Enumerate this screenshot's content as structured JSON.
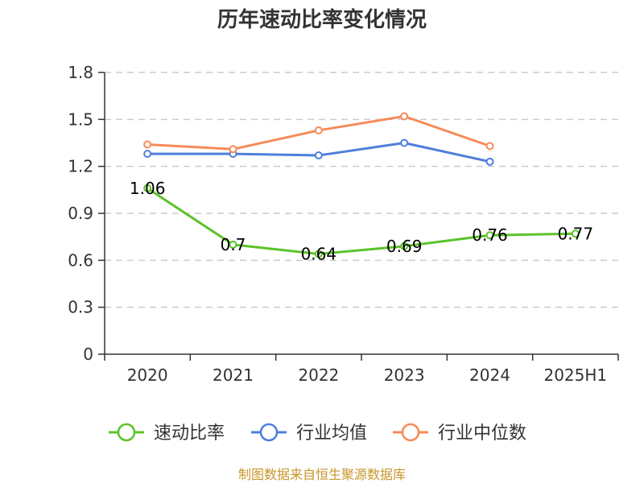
{
  "chart_data": {
    "type": "line",
    "title": "历年速动比率变化情况",
    "categories": [
      "2020",
      "2021",
      "2022",
      "2023",
      "2024",
      "2025H1"
    ],
    "ylim": [
      0,
      1.8
    ],
    "yticks": [
      "0",
      "0.3",
      "0.6",
      "0.9",
      "1.2",
      "1.5",
      "1.8"
    ],
    "grid": true,
    "legend_position": "bottom",
    "series": [
      {
        "name": "速动比率",
        "color": "#5cc22a",
        "values": [
          1.06,
          0.7,
          0.64,
          0.69,
          0.76,
          0.77
        ],
        "labels": [
          "1.06",
          "0.7",
          "0.64",
          "0.69",
          "0.76",
          "0.77"
        ]
      },
      {
        "name": "行业均值",
        "color": "#4e7fdc",
        "values": [
          1.28,
          1.28,
          1.27,
          1.35,
          1.23,
          null
        ]
      },
      {
        "name": "行业中位数",
        "color": "#f58b5a",
        "values": [
          1.34,
          1.31,
          1.43,
          1.52,
          1.33,
          null
        ]
      }
    ]
  },
  "source": "制图数据来自恒生聚源数据库"
}
